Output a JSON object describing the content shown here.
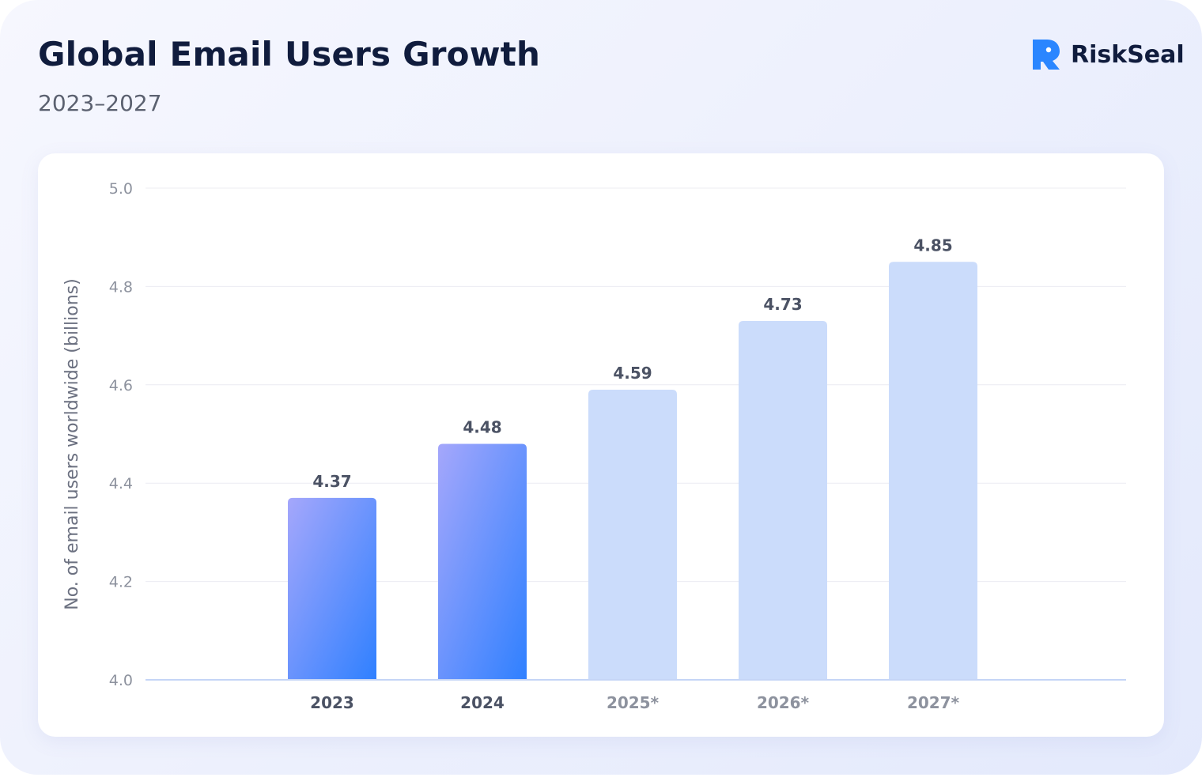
{
  "header": {
    "title": "Global Email Users Growth",
    "subtitle": "2023–2027"
  },
  "brand": {
    "name": "RiskSeal",
    "icon": "riskseal-logo-icon",
    "color": "#2a86ff"
  },
  "colors": {
    "actual_bar_start": "#a5a7fb",
    "actual_bar_end": "#2f80ff",
    "forecast_bar": "#cbdcfb",
    "actual_category": "#4b5264",
    "forecast_category": "#8d929e",
    "grid": "#ececf2",
    "baseline": "#c5d5f6"
  },
  "chart_data": {
    "type": "bar",
    "title": "",
    "xlabel": "",
    "ylabel": "No. of email users worldwide (billions)",
    "ylim": [
      4.0,
      5.0
    ],
    "yticks": [
      "4.0",
      "4.2",
      "4.4",
      "4.6",
      "4.8",
      "5.0"
    ],
    "grid": true,
    "categories": [
      "2023",
      "2024",
      "2025*",
      "2026*",
      "2027*"
    ],
    "values": [
      4.37,
      4.48,
      4.59,
      4.73,
      4.85
    ],
    "value_labels": [
      "4.37",
      "4.48",
      "4.59",
      "4.73",
      "4.85"
    ],
    "forecast": [
      false,
      false,
      true,
      true,
      true
    ]
  }
}
